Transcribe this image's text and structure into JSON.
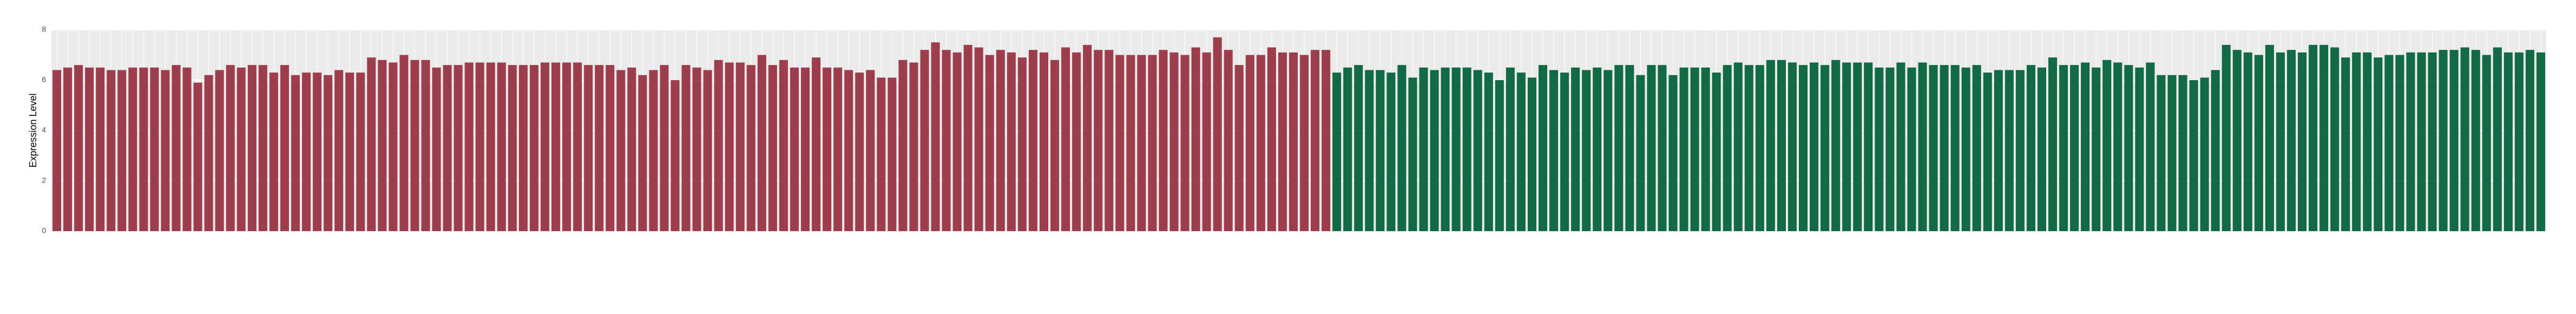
{
  "chart_data": {
    "type": "bar",
    "y_label": "Expression Level",
    "ylim": [
      0,
      8
    ],
    "yticks": [
      0,
      2,
      4,
      6,
      8
    ],
    "grid": true,
    "categories": [
      null,
      null,
      null,
      null,
      null,
      null,
      null,
      null,
      null,
      null,
      null,
      null,
      null,
      null,
      null,
      null,
      null,
      null,
      null,
      null,
      null,
      null,
      null,
      null,
      null,
      null,
      null,
      null,
      null,
      null,
      null,
      null,
      null,
      null,
      null,
      null,
      null,
      null,
      null,
      null,
      null,
      null,
      null,
      null,
      null,
      null,
      null,
      null,
      null,
      null,
      null,
      null,
      null,
      null,
      null,
      null,
      null,
      null,
      null,
      null,
      null,
      null,
      null,
      null,
      null,
      null,
      null,
      null,
      null,
      null,
      null,
      null,
      null,
      null,
      null,
      null,
      null,
      null,
      null,
      null,
      null,
      null,
      null,
      null,
      null,
      null,
      null,
      null,
      null,
      null,
      null,
      null,
      null,
      null,
      null,
      null,
      null,
      null,
      null,
      null,
      null,
      null,
      null,
      null,
      null,
      null,
      null,
      null,
      null,
      null,
      null,
      null,
      null,
      null,
      null,
      null,
      null,
      null,
      null,
      null,
      null,
      null,
      null,
      null,
      null,
      null,
      null,
      null,
      null,
      null,
      null,
      null,
      null,
      null,
      null,
      null,
      null,
      null,
      null,
      null,
      null,
      null,
      null,
      null,
      null,
      null,
      null,
      null,
      null,
      null,
      null,
      null,
      null,
      null,
      null,
      null,
      null,
      null,
      null,
      null,
      null,
      null,
      null,
      null,
      null,
      null,
      null,
      null,
      null,
      null,
      null,
      null,
      null,
      null,
      null,
      null,
      null,
      null,
      null,
      null,
      null,
      null,
      null,
      null,
      null,
      null,
      null,
      null,
      null,
      null,
      null,
      null,
      null,
      null,
      null,
      null,
      null,
      null,
      null,
      null,
      null,
      null,
      null,
      null,
      null,
      null,
      null,
      null,
      null,
      null,
      null,
      null,
      null,
      null,
      null,
      null,
      null,
      null,
      null,
      null,
      null,
      null,
      null,
      null,
      null,
      null,
      null,
      null,
      null,
      null
    ],
    "series": [
      {
        "color": "#9e3d4c",
        "values": [
          6.4,
          6.5,
          6.6,
          6.5,
          6.5,
          6.4,
          6.4,
          6.5,
          6.5,
          6.5,
          6.4,
          6.6,
          6.5,
          5.9,
          6.2,
          6.4,
          6.6,
          6.5,
          6.6,
          6.6,
          6.3,
          6.6,
          6.2,
          6.3,
          6.3,
          6.2,
          6.4,
          6.3,
          6.3,
          6.9,
          6.8,
          6.7,
          7.0,
          6.8,
          6.8,
          6.5,
          6.6,
          6.6,
          6.7,
          6.7,
          6.7,
          6.7,
          6.6,
          6.6,
          6.6,
          6.7,
          6.7,
          6.7,
          6.7,
          6.6,
          6.6,
          6.6,
          6.4,
          6.5,
          6.2,
          6.4,
          6.6,
          6.0,
          6.6,
          6.5,
          6.4,
          6.8,
          6.7,
          6.7,
          6.6,
          7.0,
          6.6,
          6.8,
          6.5,
          6.5,
          6.9,
          6.5,
          6.5,
          6.4,
          6.3,
          6.4,
          6.1,
          6.1,
          6.8,
          6.7,
          7.2,
          7.5,
          7.2,
          7.1,
          7.4,
          7.3,
          7.0,
          7.2,
          7.1,
          6.9,
          7.2,
          7.1,
          6.8,
          7.3,
          7.1,
          7.4,
          7.2,
          7.2,
          7.0,
          7.0,
          7.0,
          7.0,
          7.2,
          7.1,
          7.0,
          7.3,
          7.1,
          7.7,
          7.2,
          6.6,
          7.0,
          7.0,
          7.3,
          7.1,
          7.1,
          7.0,
          7.2,
          7.2,
          null,
          null,
          null,
          null,
          null,
          null,
          null,
          null,
          null,
          null,
          null,
          null,
          null,
          null,
          null,
          null,
          null,
          null,
          null,
          null,
          null,
          null,
          null,
          null,
          null,
          null,
          null,
          null,
          null,
          null,
          null,
          null,
          null,
          null,
          null,
          null,
          null,
          null,
          null,
          null,
          null,
          null,
          null,
          null,
          null,
          null,
          null,
          null,
          null,
          null,
          null,
          null,
          null,
          null,
          null,
          null,
          null,
          null,
          null,
          null,
          null,
          null,
          null,
          null,
          null,
          null,
          null,
          null,
          null,
          null,
          null,
          null,
          null,
          null,
          null,
          null,
          null,
          null,
          null,
          null,
          null,
          null,
          null,
          null,
          null,
          null,
          null,
          null,
          null,
          null,
          null,
          null,
          null,
          null,
          null,
          null,
          null,
          null,
          null,
          null,
          null,
          null,
          null,
          null,
          null,
          null,
          null,
          null,
          null,
          null,
          null,
          null
        ]
      },
      {
        "color": "#0f6a45",
        "values": [
          null,
          null,
          null,
          null,
          null,
          null,
          null,
          null,
          null,
          null,
          null,
          null,
          null,
          null,
          null,
          null,
          null,
          null,
          null,
          null,
          null,
          null,
          null,
          null,
          null,
          null,
          null,
          null,
          null,
          null,
          null,
          null,
          null,
          null,
          null,
          null,
          null,
          null,
          null,
          null,
          null,
          null,
          null,
          null,
          null,
          null,
          null,
          null,
          null,
          null,
          null,
          null,
          null,
          null,
          null,
          null,
          null,
          null,
          null,
          null,
          null,
          null,
          null,
          null,
          null,
          null,
          null,
          null,
          null,
          null,
          null,
          null,
          null,
          null,
          null,
          null,
          null,
          null,
          null,
          null,
          null,
          null,
          null,
          null,
          null,
          null,
          null,
          null,
          null,
          null,
          null,
          null,
          null,
          null,
          null,
          null,
          null,
          null,
          null,
          null,
          null,
          null,
          null,
          null,
          null,
          null,
          null,
          null,
          null,
          null,
          null,
          null,
          null,
          null,
          null,
          null,
          null,
          null,
          6.3,
          6.5,
          6.6,
          6.4,
          6.4,
          6.3,
          6.6,
          6.1,
          6.5,
          6.4,
          6.5,
          6.5,
          6.5,
          6.4,
          6.3,
          6.0,
          6.5,
          6.3,
          6.1,
          6.6,
          6.4,
          6.3,
          6.5,
          6.4,
          6.5,
          6.4,
          6.6,
          6.6,
          6.2,
          6.6,
          6.6,
          6.2,
          6.5,
          6.5,
          6.5,
          6.3,
          6.6,
          6.7,
          6.6,
          6.6,
          6.8,
          6.8,
          6.7,
          6.6,
          6.7,
          6.6,
          6.8,
          6.7,
          6.7,
          6.7,
          6.5,
          6.5,
          6.7,
          6.5,
          6.7,
          6.6,
          6.6,
          6.6,
          6.5,
          6.6,
          6.3,
          6.4,
          6.4,
          6.4,
          6.6,
          6.5,
          6.9,
          6.6,
          6.6,
          6.7,
          6.5,
          6.8,
          6.7,
          6.6,
          6.5,
          6.7,
          6.2,
          6.2,
          6.2,
          6.0,
          6.1,
          6.4,
          7.4,
          7.2,
          7.1,
          7.0,
          7.4,
          7.1,
          7.2,
          7.1,
          7.4,
          7.4,
          7.3,
          6.9,
          7.1,
          7.1,
          6.9,
          7.0,
          7.0,
          7.1,
          7.1,
          7.1,
          7.2,
          7.2,
          7.3,
          7.2,
          7.0,
          7.3,
          7.1,
          7.1,
          7.2,
          7.1
        ]
      }
    ]
  }
}
